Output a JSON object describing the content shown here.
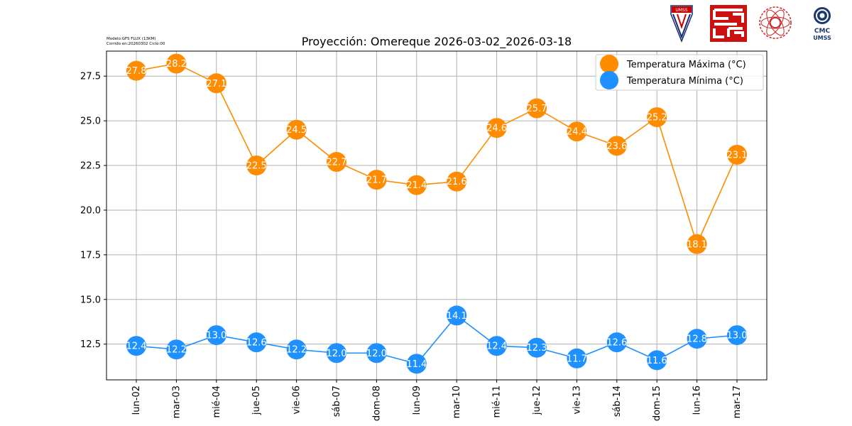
{
  "model_info": {
    "line1": "Modelo:GFS FLUX (13KM)",
    "line2": "Corrido en:20260302 Ciclo:00"
  },
  "logos": {
    "umss_label": "UMSS",
    "cmc_line1": "CMC",
    "cmc_line2": "UMSS"
  },
  "colors": {
    "max": "#ff8c00",
    "min": "#1e90ff",
    "grid": "#b0b0b0"
  },
  "chart_data": {
    "type": "line",
    "title": "Proyección: Omereque 2026-03-02_2026-03-18",
    "xlabel": "",
    "ylabel": "",
    "categories": [
      "lun-02",
      "mar-03",
      "mié-04",
      "jue-05",
      "vie-06",
      "sáb-07",
      "dom-08",
      "lun-09",
      "mar-10",
      "mié-11",
      "jue-12",
      "vie-13",
      "sáb-14",
      "dom-15",
      "lun-16",
      "mar-17"
    ],
    "series": [
      {
        "name": "Temperatura Máxima  (°C)",
        "values": [
          27.8,
          28.2,
          27.1,
          22.5,
          24.5,
          22.7,
          21.7,
          21.4,
          21.6,
          24.6,
          25.7,
          24.4,
          23.6,
          25.2,
          18.1,
          23.1
        ],
        "labels": [
          "27.8",
          "28.2",
          "27.1",
          "22.5",
          "24.5",
          "22.7",
          "21.7",
          "21.4",
          "21.6",
          "24.6",
          "25.7",
          "24.4",
          "23.6",
          "25.2",
          "18.1",
          "23.1"
        ]
      },
      {
        "name": "Temperatura Mínima  (°C)",
        "values": [
          12.4,
          12.2,
          13.0,
          12.6,
          12.2,
          12.0,
          12.0,
          11.4,
          14.1,
          12.4,
          12.3,
          11.7,
          12.6,
          11.6,
          12.8,
          13.0
        ],
        "labels": [
          "12.4",
          "12.2",
          "13.0",
          "12.6",
          "12.2",
          "12.0",
          "12.0",
          "11.4",
          "14.1",
          "12.4",
          "12.3",
          "11.7",
          "12.6",
          "11.6",
          "12.8",
          "13.0"
        ]
      }
    ],
    "ylim": [
      10.5,
      28.9
    ],
    "yticks": [
      12.5,
      15.0,
      17.5,
      20.0,
      22.5,
      25.0,
      27.5
    ],
    "ytick_labels": [
      "12.5",
      "15.0",
      "17.5",
      "20.0",
      "22.5",
      "25.0",
      "27.5"
    ],
    "grid": true,
    "legend_position": "top-right"
  }
}
